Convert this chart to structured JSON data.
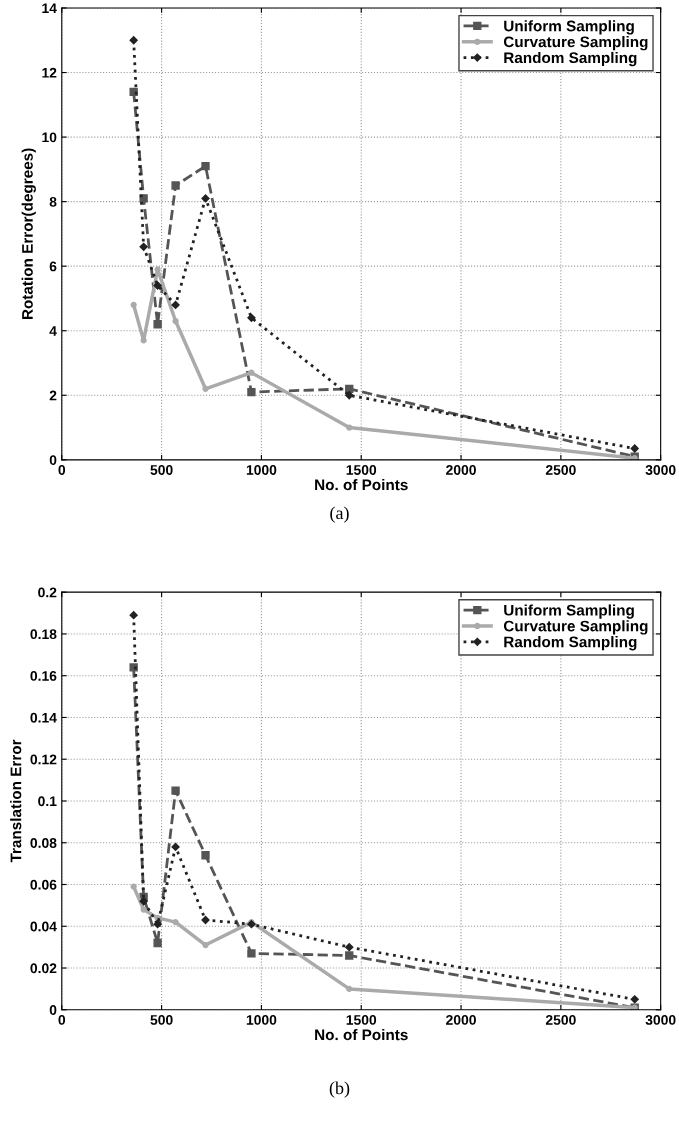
{
  "chart_data": [
    {
      "type": "line",
      "xlabel": "No. of Points",
      "ylabel": "Rotation Error(degrees)",
      "annotations": [
        "(a)"
      ],
      "x": [
        360,
        410,
        480,
        570,
        720,
        950,
        1440,
        2870
      ],
      "series": [
        {
          "name": "Uniform Sampling",
          "color": "#555555",
          "marker": "square",
          "line_style": "dashed",
          "values": [
            11.4,
            8.1,
            4.2,
            8.5,
            9.1,
            2.1,
            2.2,
            0.1
          ]
        },
        {
          "name": "Curvature Sampling",
          "color": "#aaaaaa",
          "marker": "circle",
          "line_style": "solid",
          "values": [
            4.8,
            3.7,
            5.9,
            4.3,
            2.2,
            2.7,
            1.0,
            0.05
          ]
        },
        {
          "name": "Random Sampling",
          "color": "#222222",
          "marker": "diamond",
          "line_style": "dotted",
          "values": [
            13.0,
            6.6,
            5.4,
            4.8,
            8.1,
            4.4,
            2.0,
            0.35
          ]
        }
      ],
      "xlim": [
        0,
        3000
      ],
      "xticks": [
        0,
        500,
        1000,
        1500,
        2000,
        2500,
        3000
      ],
      "ylim": [
        0,
        14
      ],
      "yticks": [
        0,
        2,
        4,
        6,
        8,
        10,
        12,
        14
      ],
      "grid": true,
      "legend": "top right"
    },
    {
      "type": "line",
      "xlabel": "No. of Points",
      "ylabel": "Translation Error",
      "annotations": [
        "(b)"
      ],
      "x": [
        360,
        410,
        480,
        570,
        720,
        950,
        1440,
        2870
      ],
      "series": [
        {
          "name": "Uniform Sampling",
          "color": "#555555",
          "marker": "square",
          "line_style": "dashed",
          "values": [
            0.164,
            0.054,
            0.032,
            0.105,
            0.074,
            0.027,
            0.026,
            0.001
          ]
        },
        {
          "name": "Curvature Sampling",
          "color": "#aaaaaa",
          "marker": "circle",
          "line_style": "solid",
          "values": [
            0.059,
            0.048,
            0.044,
            0.042,
            0.031,
            0.042,
            0.01,
            0.001
          ]
        },
        {
          "name": "Random Sampling",
          "color": "#222222",
          "marker": "diamond",
          "line_style": "dotted",
          "values": [
            0.189,
            0.052,
            0.041,
            0.078,
            0.043,
            0.041,
            0.03,
            0.005
          ]
        }
      ],
      "xlim": [
        0,
        3000
      ],
      "xticks": [
        0,
        500,
        1000,
        1500,
        2000,
        2500,
        3000
      ],
      "ylim": [
        0,
        0.2
      ],
      "yticks": [
        0,
        0.02,
        0.04,
        0.06,
        0.08,
        0.1,
        0.12,
        0.14,
        0.16,
        0.18,
        0.2
      ],
      "grid": true,
      "legend": "top right"
    }
  ]
}
